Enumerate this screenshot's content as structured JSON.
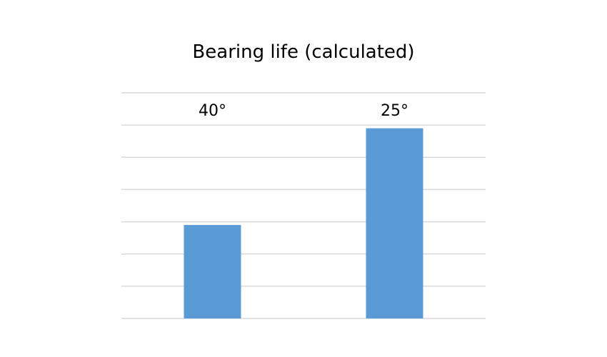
{
  "chart_data": {
    "type": "bar",
    "title": "Bearing life (calculated)",
    "categories": [
      "40°",
      "25°"
    ],
    "series": [
      {
        "values": [
          2.9,
          5.9
        ]
      }
    ],
    "ylim": [
      0,
      7
    ],
    "grid": true,
    "legend": "none",
    "y_tick_labels_shown": false,
    "x_tick_labels_position": "top",
    "bar_color": "#5b9bd5",
    "grid_color": "#d9d9d9",
    "title_color": "#000000"
  }
}
